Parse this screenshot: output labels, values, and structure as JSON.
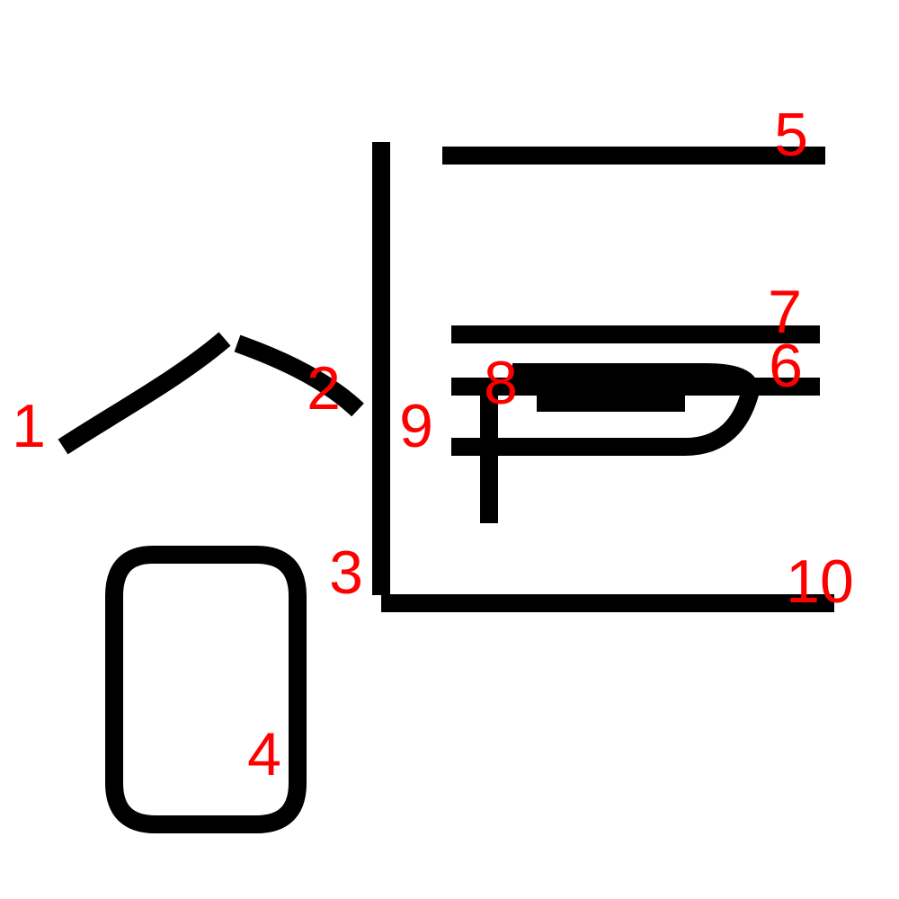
{
  "colors": {
    "stroke": "#000000",
    "label": "#ff0000",
    "background": "#ffffff"
  },
  "strokes": [
    {
      "id": "stroke-1",
      "label": "1"
    },
    {
      "id": "stroke-2",
      "label": "2"
    },
    {
      "id": "stroke-3",
      "label": "3"
    },
    {
      "id": "stroke-4",
      "label": "4"
    },
    {
      "id": "stroke-5",
      "label": "5"
    },
    {
      "id": "stroke-6",
      "label": "6"
    },
    {
      "id": "stroke-7",
      "label": "7"
    },
    {
      "id": "stroke-8",
      "label": "8"
    },
    {
      "id": "stroke-9",
      "label": "9"
    },
    {
      "id": "stroke-10",
      "label": "10"
    }
  ]
}
